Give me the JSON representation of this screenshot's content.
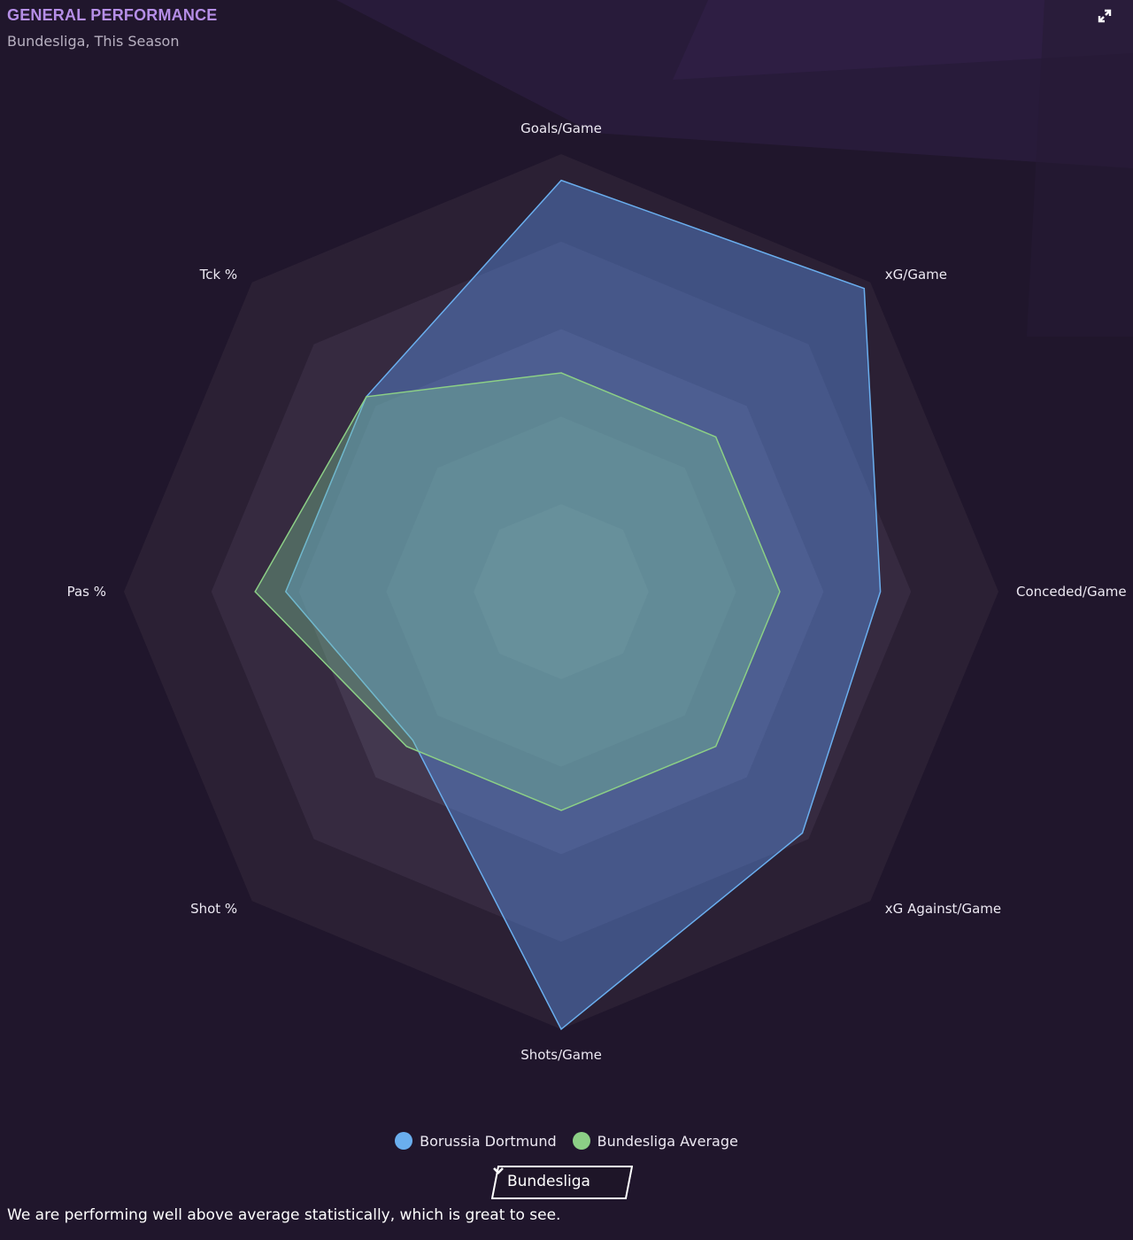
{
  "panel": {
    "title": "GENERAL PERFORMANCE",
    "subtitle": "Bundesliga, This Season",
    "expand_icon": "expand-icon"
  },
  "chart_data": {
    "type": "radar",
    "axes": [
      "Goals/Game",
      "xG/Game",
      "Conceded/Game",
      "xG Against/Game",
      "Shots/Game",
      "Shot %",
      "Pas %",
      "Tck %"
    ],
    "rings": 5,
    "range": [
      0,
      1
    ],
    "series": [
      {
        "name": "Borussia Dortmund",
        "color": "#6aaeee",
        "values": [
          0.94,
          0.98,
          0.73,
          0.78,
          1.0,
          0.48,
          0.63,
          0.63
        ]
      },
      {
        "name": "Bundesliga Average",
        "color": "#8ccf86",
        "values": [
          0.5,
          0.5,
          0.5,
          0.5,
          0.5,
          0.5,
          0.7,
          0.63
        ]
      }
    ]
  },
  "legend": [
    {
      "label": "Borussia Dortmund",
      "color": "#6aaeee"
    },
    {
      "label": "Bundesliga Average",
      "color": "#8ccf86"
    }
  ],
  "dropdown": {
    "selected": "Bundesliga",
    "icon": "chevron-down-icon"
  },
  "summary": "We are performing well above average statistically, which is great to see."
}
